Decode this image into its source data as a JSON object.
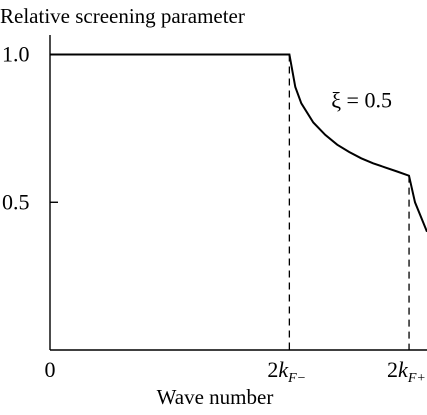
{
  "chart_data": {
    "type": "line",
    "title": "",
    "ylabel": "Relative screening parameter",
    "xlabel": "Wave number",
    "ylim": [
      0,
      1.1
    ],
    "xlim": [
      0,
      3.15
    ],
    "y_ticks": [
      {
        "value": 1.0,
        "label": "1.0"
      },
      {
        "value": 0.5,
        "label": "0.5"
      }
    ],
    "x_ticks": [
      {
        "value": 0,
        "label": "0"
      },
      {
        "value": 2.0,
        "label": "2k",
        "sub": "F−"
      },
      {
        "value": 3.0,
        "label": "2k",
        "sub": "F+"
      }
    ],
    "annotation": {
      "text": "ξ = 0.5",
      "x": 2.35,
      "y": 0.82
    },
    "series": [
      {
        "x": [
          0,
          0.5,
          1.0,
          1.5,
          2.0,
          2.05,
          2.1,
          2.2,
          2.3,
          2.4,
          2.5,
          2.6,
          2.7,
          2.8,
          2.9,
          3.0,
          3.05,
          3.1,
          3.15
        ],
        "y": [
          1.0,
          1.0,
          1.0,
          1.0,
          1.0,
          0.89,
          0.835,
          0.77,
          0.728,
          0.695,
          0.67,
          0.649,
          0.632,
          0.618,
          0.604,
          0.59,
          0.5,
          0.45,
          0.4
        ]
      }
    ]
  }
}
